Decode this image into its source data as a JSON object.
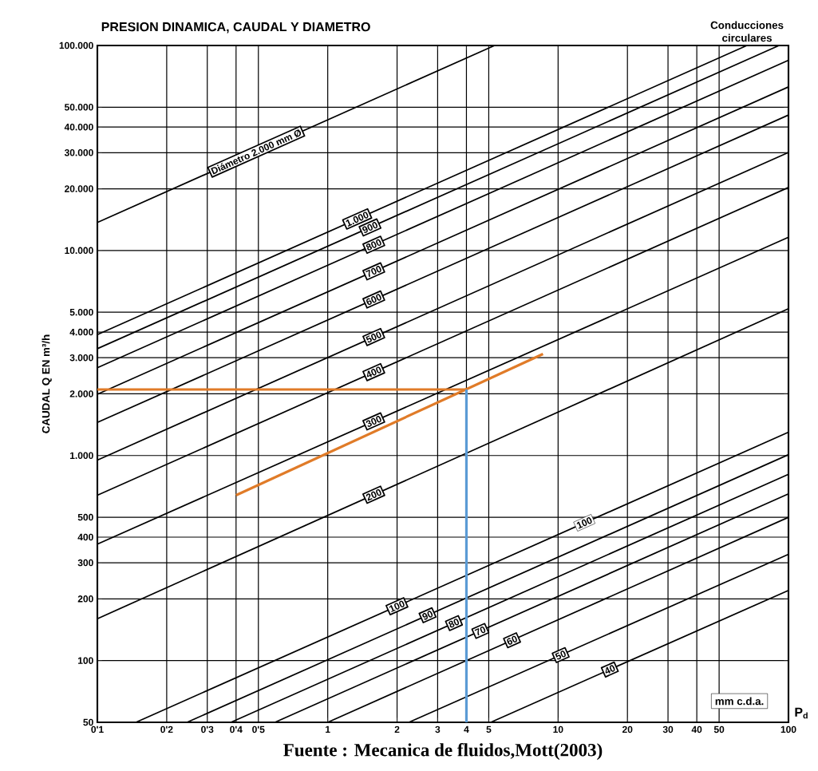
{
  "chart_data": {
    "type": "line",
    "title": "PRESION DINAMICA, CAUDAL Y DIAMETRO",
    "xlabel": "P$_{d}$",
    "ylabel": "CAUDAL Q EN m³/h",
    "annotations": [
      "Conducciones circulares",
      "mm c.d.a.",
      "Fuente : Mecanica de fluidos,Mott(2003)",
      {
        "text": "100",
        "x": 13,
        "y": 470
      }
    ],
    "log": "xy",
    "grid": true,
    "xlim": [
      0.1,
      100
    ],
    "ylim": [
      50,
      100000
    ],
    "xticks": [
      {
        "value": 0.1,
        "label": "0'1"
      },
      {
        "value": 0.2,
        "label": "0'2"
      },
      {
        "value": 0.3,
        "label": "0'3"
      },
      {
        "value": 0.4,
        "label": "0'4"
      },
      {
        "value": 0.5,
        "label": "0'5"
      },
      1,
      2,
      3,
      4,
      5,
      10,
      20,
      30,
      40,
      50,
      100
    ],
    "yticks": [
      50,
      100,
      200,
      300,
      400,
      500,
      {
        "value": 1000,
        "label": "1.000"
      },
      {
        "value": 2000,
        "label": "2.000"
      },
      {
        "value": 3000,
        "label": "3.000"
      },
      {
        "value": 4000,
        "label": "4.000"
      },
      {
        "value": 5000,
        "label": "5.000"
      },
      {
        "value": 10000,
        "label": "10.000"
      },
      {
        "value": 20000,
        "label": "20.000"
      },
      {
        "value": 30000,
        "label": "30.000"
      },
      {
        "value": 40000,
        "label": "40.000"
      },
      {
        "value": 50000,
        "label": "50.000"
      },
      {
        "value": 100000,
        "label": "100.000"
      }
    ],
    "series": [
      {
        "name": "Diámetro 2.000 mm Ø",
        "color": "#000000",
        "x": [
          0.1,
          5.3
        ],
        "values": [
          13700,
          100000
        ]
      },
      {
        "name": "1.000",
        "color": "#000000",
        "x": [
          0.1,
          66
        ],
        "values": [
          3890,
          100000
        ]
      },
      {
        "name": "900",
        "color": "#000000",
        "x": [
          0.1,
          91
        ],
        "values": [
          3320,
          100000
        ]
      },
      {
        "name": "800",
        "color": "#000000",
        "x": [
          0.1,
          100
        ],
        "values": [
          2680,
          84700
        ]
      },
      {
        "name": "700",
        "color": "#000000",
        "x": [
          0.1,
          100
        ],
        "values": [
          1990,
          62800
        ]
      },
      {
        "name": "600",
        "color": "#000000",
        "x": [
          0.1,
          100
        ],
        "values": [
          1450,
          45800
        ]
      },
      {
        "name": "500",
        "color": "#000000",
        "x": [
          0.1,
          100
        ],
        "values": [
          950,
          30100
        ]
      },
      {
        "name": "400",
        "color": "#000000",
        "x": [
          0.1,
          100
        ],
        "values": [
          640,
          20300
        ]
      },
      {
        "name": "300",
        "color": "#000000",
        "x": [
          0.1,
          100
        ],
        "values": [
          370,
          11600
        ]
      },
      {
        "name": "200",
        "color": "#000000",
        "x": [
          0.1,
          100
        ],
        "values": [
          160,
          5200
        ]
      },
      {
        "name": "100",
        "color": "#000000",
        "x": [
          0.147,
          100
        ],
        "values": [
          50,
          1300
        ]
      },
      {
        "name": "90",
        "color": "#000000",
        "x": [
          0.245,
          100
        ],
        "values": [
          50,
          1010
        ]
      },
      {
        "name": "80",
        "color": "#000000",
        "x": [
          0.38,
          100
        ],
        "values": [
          50,
          810
        ]
      },
      {
        "name": "70",
        "color": "#000000",
        "x": [
          0.59,
          100
        ],
        "values": [
          50,
          650
        ]
      },
      {
        "name": "60",
        "color": "#000000",
        "x": [
          1,
          100
        ],
        "values": [
          50,
          500
        ]
      },
      {
        "name": "50",
        "color": "#000000",
        "x": [
          2.25,
          100
        ],
        "values": [
          50,
          330
        ]
      },
      {
        "name": "40",
        "color": "#000000",
        "x": [
          5.1,
          100
        ],
        "values": [
          50,
          220
        ]
      },
      {
        "color": "#e07b28",
        "x": [
          0.1,
          4
        ],
        "values": [
          2100,
          2100
        ]
      },
      {
        "color": "#e07b28",
        "x": [
          0.4,
          8.6
        ],
        "values": [
          640,
          3130
        ]
      },
      {
        "color": "#5b9bd5",
        "x": [
          4,
          4
        ],
        "values": [
          2100,
          50
        ]
      }
    ]
  }
}
